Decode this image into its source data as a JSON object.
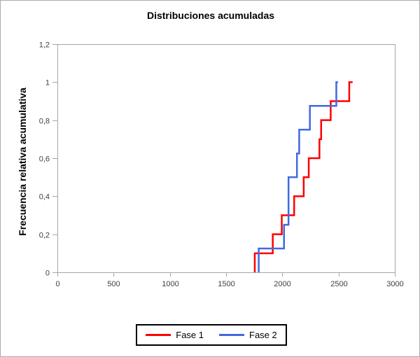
{
  "chart_data": {
    "type": "line",
    "subtype": "cumulative-step-ecdf",
    "title": "Distribuciones acumuladas",
    "xlabel": "",
    "ylabel": "Frecuencia relativa acumulativa",
    "xlim": [
      0,
      3000
    ],
    "ylim": [
      0,
      1.2
    ],
    "x_ticks": [
      0,
      500,
      1000,
      1500,
      2000,
      2500,
      3000
    ],
    "x_tick_labels": [
      "0",
      "500",
      "1000",
      "1500",
      "2000",
      "2500",
      "3000"
    ],
    "y_ticks": [
      0,
      0.2,
      0.4,
      0.6,
      0.8,
      1.0,
      1.2
    ],
    "y_tick_labels": [
      "0",
      "0,2",
      "0,4",
      "0,6",
      "0,8",
      "1",
      "1,2"
    ],
    "grid": "off",
    "legend_position": "bottom-center",
    "plot_border": "top-right-left-bottom",
    "series": [
      {
        "name": "Fase 1",
        "color": "#FF0000",
        "n_points": 10,
        "sample_values": [
          1755,
          1915,
          1995,
          2105,
          2190,
          2235,
          2330,
          2345,
          2430,
          2595
        ],
        "cumulative_y": [
          0.1,
          0.2,
          0.3,
          0.4,
          0.5,
          0.6,
          0.7,
          0.8,
          0.9,
          1.0
        ],
        "cap_x": 2625
      },
      {
        "name": "Fase 2",
        "color": "#4169E1",
        "n_points": 8,
        "sample_values": [
          1790,
          2015,
          2055,
          2055,
          2130,
          2150,
          2245,
          2480
        ],
        "cumulative_y": [
          0.125,
          0.25,
          0.375,
          0.5,
          0.625,
          0.75,
          0.875,
          1.0
        ],
        "cap_x": 2495
      }
    ]
  },
  "colors": {
    "axis": "#A6A6A6",
    "tick_text": "#404040",
    "outer_border": "#ABABAB",
    "background": "#FFFFFF"
  }
}
